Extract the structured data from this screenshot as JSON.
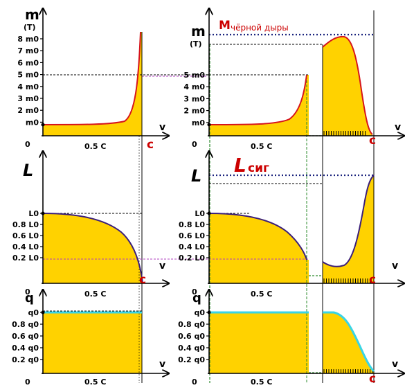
{
  "colors": {
    "fill": "#ffd200",
    "mass_curve": "#d6141c",
    "length_curve": "#3a1e7a",
    "charge_curve": "#38d4e6",
    "c_label": "#cc0000",
    "blackhole_line": "#1a237e",
    "guide_green": "#2e8b2e",
    "guide_magenta": "#b040c0"
  },
  "labels": {
    "origin": "0",
    "half_c": "0.5 C",
    "c": "c",
    "v": "v",
    "m_axis": "m",
    "m_axis_sub": "(T)",
    "L_axis": "L",
    "q_axis": "q",
    "blackhole_M": "M",
    "blackhole_text": "чёрной дыры",
    "string_L": "L",
    "string_sub": "сиг"
  },
  "ticks": {
    "mass_left": [
      "8 m0",
      "7 m0",
      "6 m0",
      "5 m0",
      "4 m0",
      "3 m0",
      "2 m0",
      "m0"
    ],
    "mass_right": [
      "5 m0",
      "4 m0",
      "3 m0",
      "2 m0",
      "m0"
    ],
    "length": [
      "L0",
      "0.8 L0",
      "0.6 L0",
      "0.4 L0",
      "0.2 L0"
    ],
    "charge": [
      "q0",
      "0.8 q0",
      "0.6 q0",
      "0.4 q0",
      "0.2 q0"
    ]
  }
}
